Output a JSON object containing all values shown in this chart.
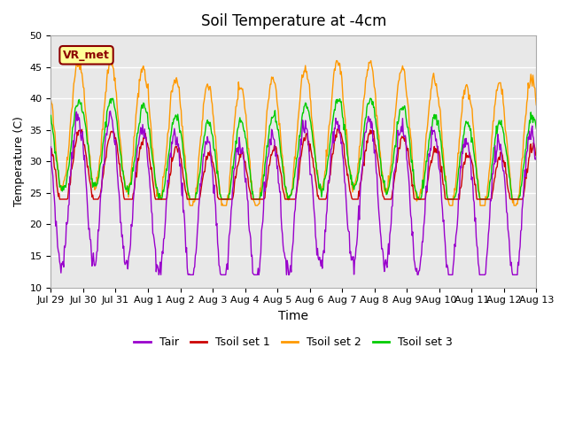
{
  "title": "Soil Temperature at -4cm",
  "xlabel": "Time",
  "ylabel": "Temperature (C)",
  "ylim": [
    10,
    50
  ],
  "n_days": 15,
  "bg_color": "#e8e8e8",
  "vr_met_label": "VR_met",
  "series_colors": {
    "Tair": "#9900cc",
    "Tsoil set 1": "#cc0000",
    "Tsoil set 2": "#ff9900",
    "Tsoil set 3": "#00cc00"
  },
  "xtick_labels": [
    "Jul 29",
    "Jul 30",
    "Jul 31",
    "Aug 1",
    "Aug 2",
    "Aug 3",
    "Aug 4",
    "Aug 5",
    "Aug 6",
    "Aug 7",
    "Aug 8",
    "Aug 9",
    "Aug 10",
    "Aug 11",
    "Aug 12",
    "Aug 13"
  ],
  "ytick_values": [
    10,
    15,
    20,
    25,
    30,
    35,
    40,
    45,
    50
  ],
  "title_fontsize": 12,
  "tick_fontsize": 8,
  "legend_fontsize": 9
}
